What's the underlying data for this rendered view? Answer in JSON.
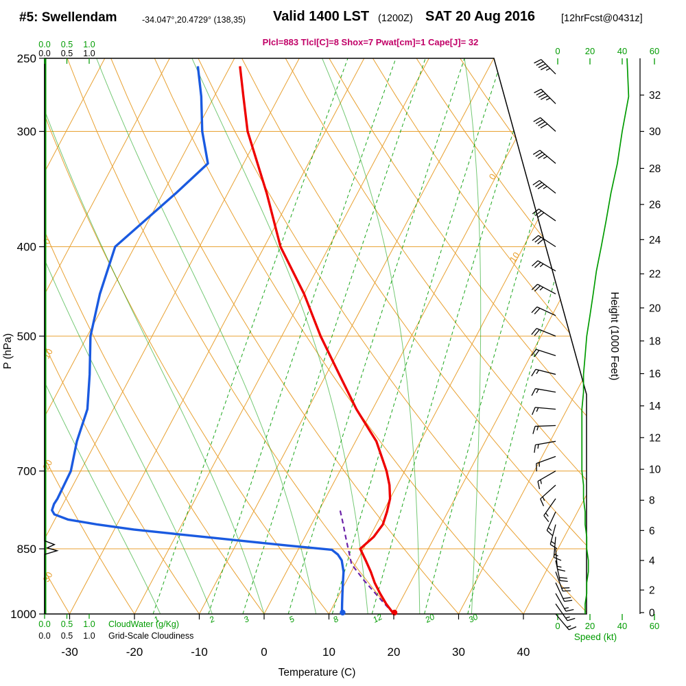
{
  "header": {
    "station": "#5: Swellendam",
    "coords": "-34.047°,20.4729° (138,35)",
    "valid_time": "Valid 1400 LST",
    "valid_zulu": "(1200Z)",
    "valid_date": "SAT 20 Aug 2016",
    "forecast_info": "[12hrFcst@0431z]",
    "indices_text": "Plcl=883 Tlcl[C]=8 Shox=7 Pwat[cm]=1 Cape[J]= 32"
  },
  "colors": {
    "grid_orange": "#E8A030",
    "green": "#009B00",
    "temperature_red": "#EE0000",
    "dewpoint_blue": "#1A5AE0",
    "parcel_purple": "#6B21A8",
    "indices_magenta": "#C10067",
    "axis_black": "#000000"
  },
  "axes": {
    "pressure_title": "P (hPa)",
    "pressure_ticks": [
      250,
      300,
      400,
      500,
      700,
      850,
      1000
    ],
    "temperature_title": "Temperature (C)",
    "temperature_ticks": [
      -30,
      -20,
      -10,
      0,
      10,
      20,
      30,
      40
    ],
    "height_title": "Height (1000 Feet)",
    "height_ticks": [
      [
        0,
        1013
      ],
      [
        2,
        942
      ],
      [
        4,
        875
      ],
      [
        6,
        812
      ],
      [
        8,
        753
      ],
      [
        10,
        697
      ],
      [
        12,
        644
      ],
      [
        14,
        595
      ],
      [
        16,
        549
      ],
      [
        18,
        506
      ],
      [
        20,
        466
      ],
      [
        22,
        428
      ],
      [
        24,
        393
      ],
      [
        26,
        360
      ],
      [
        28,
        329
      ],
      [
        30,
        300
      ],
      [
        32,
        274
      ]
    ],
    "speed_title": "Speed (kt)",
    "speed_ticks": [
      0,
      20,
      40,
      60
    ],
    "cloudwater_title": "CloudWater (g/Kg)",
    "cloudiness_title": "Grid-Scale Cloudiness",
    "scale_labels": [
      "0.0",
      "0.5",
      "1.0"
    ]
  },
  "chart_data": {
    "type": "skewt_log_p_sounding",
    "pressure_range_hPa": [
      250,
      1000
    ],
    "temperature_axis_c": [
      -30,
      40
    ],
    "grid": {
      "isobars": [
        300,
        400,
        500,
        700,
        850
      ],
      "isotherms_c": {
        "min": -80,
        "max": 40,
        "step": 10
      },
      "isotherm_labels": [
        0,
        10
      ],
      "dry_adiabats_c": {
        "min": -30,
        "max": 160,
        "step": 10
      },
      "dry_adiabat_labels": [
        0,
        -10,
        -20,
        -30
      ],
      "moist_adiabats_start_c": [
        -16,
        -8,
        0,
        8,
        16,
        24,
        32
      ],
      "mixing_ratio_lines_gkg": [
        1,
        2,
        3,
        5,
        8,
        12,
        20,
        30
      ]
    },
    "temperature_profile": {
      "pressure_hPa": [
        1000,
        975,
        950,
        925,
        900,
        875,
        850,
        825,
        800,
        775,
        750,
        725,
        700,
        650,
        600,
        550,
        500,
        450,
        400,
        350,
        300,
        275,
        255
      ],
      "temp_c": [
        20,
        18,
        16.2,
        14.5,
        13,
        11.3,
        9.5,
        10.6,
        11,
        10.6,
        10,
        8.8,
        7.2,
        3.2,
        -2.5,
        -8,
        -14,
        -20,
        -27.5,
        -34,
        -42,
        -45.5,
        -48.5
      ]
    },
    "dewpoint_profile": {
      "pressure_hPa": [
        1000,
        975,
        950,
        925,
        900,
        875,
        862,
        852,
        843,
        835,
        827,
        818,
        810,
        800,
        790,
        780,
        772,
        760,
        750,
        725,
        700,
        650,
        600,
        550,
        500,
        450,
        400,
        350,
        325,
        300,
        275,
        255
      ],
      "dewpoint_c": [
        12,
        11.2,
        10.4,
        9.6,
        8.8,
        7.6,
        6.5,
        5.2,
        -2,
        -8,
        -14,
        -21,
        -27,
        -33,
        -38,
        -40.5,
        -41.2,
        -41.4,
        -41.3,
        -41.4,
        -41.5,
        -43,
        -44,
        -46.5,
        -49.5,
        -51.5,
        -53,
        -48,
        -45.5,
        -49,
        -52,
        -55
      ]
    },
    "parcel_path": {
      "pressure_hPa": [
        1000,
        960,
        920,
        883,
        860,
        840,
        820,
        800,
        783,
        768
      ],
      "temp_c": [
        20,
        16.4,
        12.7,
        9.4,
        8.2,
        7.1,
        6.0,
        4.9,
        3.9,
        3.0
      ]
    },
    "surface_dots": {
      "temp_c": 20,
      "dewpoint_c": 12,
      "pressure_hPa": 1000
    },
    "wind_barbs": [
      [
        260,
        315,
        45
      ],
      [
        280,
        315,
        44
      ],
      [
        300,
        312,
        40
      ],
      [
        325,
        310,
        37
      ],
      [
        350,
        308,
        33
      ],
      [
        375,
        305,
        30
      ],
      [
        400,
        303,
        28
      ],
      [
        425,
        300,
        25
      ],
      [
        450,
        298,
        23
      ],
      [
        475,
        295,
        21
      ],
      [
        500,
        292,
        19
      ],
      [
        525,
        288,
        18
      ],
      [
        550,
        284,
        17
      ],
      [
        575,
        280,
        16
      ],
      [
        600,
        275,
        15
      ],
      [
        625,
        268,
        15
      ],
      [
        650,
        260,
        14
      ],
      [
        675,
        250,
        14
      ],
      [
        700,
        240,
        14
      ],
      [
        725,
        228,
        15
      ],
      [
        750,
        215,
        15
      ],
      [
        775,
        205,
        16
      ],
      [
        800,
        195,
        16
      ],
      [
        825,
        185,
        17
      ],
      [
        850,
        175,
        17
      ],
      [
        875,
        168,
        18
      ],
      [
        900,
        160,
        18
      ],
      [
        925,
        155,
        18
      ],
      [
        950,
        150,
        17
      ],
      [
        975,
        145,
        17
      ],
      [
        1000,
        140,
        16
      ]
    ],
    "speed_profile": {
      "pressure_hPa": [
        250,
        275,
        300,
        325,
        350,
        375,
        400,
        425,
        450,
        475,
        500,
        525,
        550,
        575,
        600,
        625,
        650,
        675,
        700,
        725,
        750,
        775,
        800,
        825,
        850,
        875,
        900,
        925,
        950,
        975,
        1000
      ],
      "kt": [
        43,
        44,
        40,
        37,
        33,
        30,
        27,
        24,
        22,
        20,
        18,
        17,
        16,
        16,
        15,
        15,
        15,
        15,
        15,
        16,
        16,
        17,
        17,
        18,
        18,
        19,
        19,
        18,
        18,
        17,
        17
      ]
    },
    "cloudwater_profile_gkg": 0,
    "grid_scale_cloudiness_profile": [
      [
        1000,
        0
      ],
      [
        862,
        0
      ],
      [
        854,
        0.28
      ],
      [
        848,
        0.06
      ],
      [
        841,
        0.22
      ],
      [
        833,
        0
      ],
      [
        250,
        0
      ]
    ],
    "indices": {
      "Plcl_hPa": 883,
      "Tlcl_C": 8,
      "Showalter": 7,
      "Pwat_cm": 1,
      "Cape_J": 32
    }
  }
}
